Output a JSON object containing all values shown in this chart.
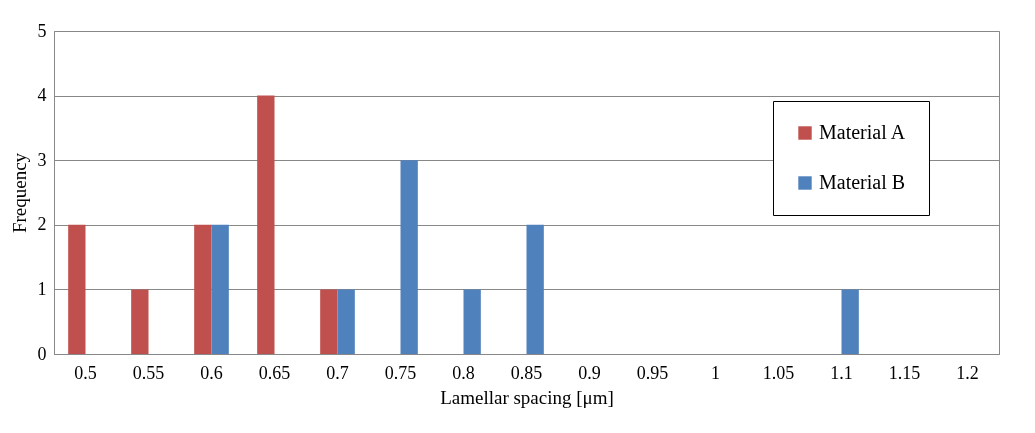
{
  "chart_data": {
    "type": "bar",
    "xlabel": "Lamellar spacing [μm]",
    "ylabel": "Frequency",
    "categories": [
      "0.5",
      "0.55",
      "0.6",
      "0.65",
      "0.7",
      "0.75",
      "0.8",
      "0.85",
      "0.9",
      "0.95",
      "1",
      "1.05",
      "1.1",
      "1.15",
      "1.2"
    ],
    "series": [
      {
        "name": "Material A",
        "color": "#c0504d",
        "values": [
          2,
          1,
          2,
          4,
          1,
          0,
          0,
          0,
          0,
          0,
          0,
          0,
          0,
          0,
          0
        ]
      },
      {
        "name": "Material B",
        "color": "#4f81bd",
        "values": [
          0,
          0,
          2,
          0,
          1,
          3,
          1,
          2,
          0,
          0,
          0,
          0,
          1,
          0,
          0
        ]
      }
    ],
    "ylim": [
      0,
      5
    ],
    "yticks": [
      0,
      1,
      2,
      3,
      4,
      5
    ],
    "grid": "y",
    "legend": "top right"
  }
}
